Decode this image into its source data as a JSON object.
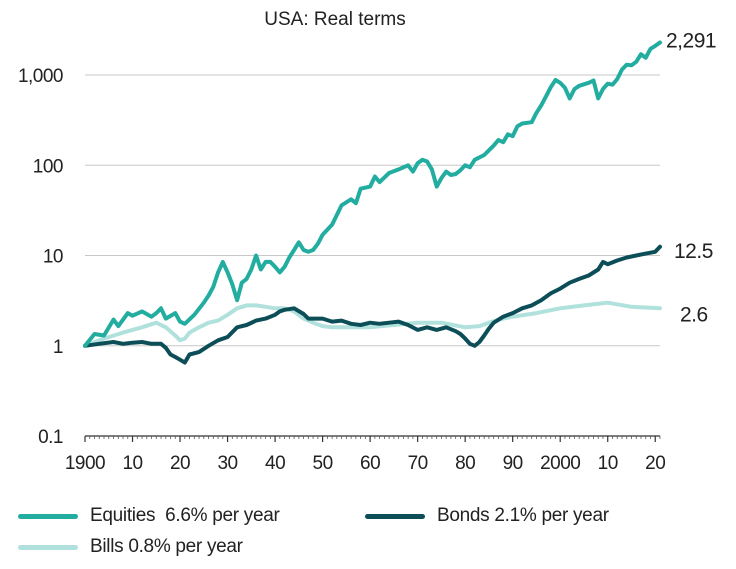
{
  "chart_data": {
    "type": "line",
    "title": "USA: Real terms",
    "y_scale": "log",
    "ylim": [
      0.1,
      3000
    ],
    "xlim": [
      1900,
      2021
    ],
    "x_tick_labels": [
      "1900",
      "10",
      "20",
      "30",
      "40",
      "50",
      "60",
      "70",
      "80",
      "90",
      "2000",
      "10",
      "20"
    ],
    "y_tick_labels": [
      "0.1",
      "1",
      "10",
      "100",
      "1,000"
    ],
    "y_tick_values": [
      0.1,
      1,
      10,
      100,
      1000
    ],
    "grid": true,
    "series": [
      {
        "name": "Equities",
        "legend": "Equities  6.6% per year",
        "color": "#22ada0",
        "end_label": "2,291",
        "x": [
          1900,
          1902,
          1904,
          1906,
          1907,
          1909,
          1910,
          1912,
          1914,
          1915,
          1916,
          1917,
          1919,
          1920,
          1921,
          1923,
          1925,
          1926,
          1927,
          1928,
          1929,
          1930,
          1931,
          1932,
          1933,
          1934,
          1935,
          1936,
          1937,
          1938,
          1939,
          1940,
          1941,
          1942,
          1943,
          1944,
          1945,
          1946,
          1947,
          1948,
          1949,
          1950,
          1952,
          1954,
          1956,
          1957,
          1958,
          1960,
          1961,
          1962,
          1964,
          1966,
          1967,
          1968,
          1969,
          1970,
          1971,
          1972,
          1973,
          1974,
          1975,
          1976,
          1977,
          1978,
          1979,
          1980,
          1981,
          1982,
          1984,
          1986,
          1987,
          1988,
          1989,
          1990,
          1991,
          1992,
          1994,
          1995,
          1996,
          1997,
          1998,
          1999,
          2000,
          2001,
          2002,
          2003,
          2004,
          2006,
          2007,
          2008,
          2009,
          2010,
          2011,
          2012,
          2013,
          2014,
          2015,
          2016,
          2017,
          2018,
          2019,
          2020,
          2021
        ],
        "values": [
          1.0,
          1.35,
          1.3,
          1.95,
          1.65,
          2.3,
          2.15,
          2.4,
          2.1,
          2.3,
          2.6,
          2.0,
          2.3,
          1.85,
          1.75,
          2.2,
          3.0,
          3.6,
          4.5,
          6.5,
          8.5,
          6.5,
          4.8,
          3.2,
          5.0,
          5.5,
          7.0,
          10.0,
          7.0,
          8.5,
          8.5,
          7.5,
          6.5,
          7.5,
          9.5,
          11.5,
          14.0,
          11.5,
          11.0,
          11.5,
          13.5,
          17.0,
          22.0,
          36.0,
          42.0,
          38.0,
          55.0,
          58.0,
          75.0,
          65.0,
          82.0,
          90.0,
          95.0,
          100.0,
          85.0,
          105.0,
          115.0,
          110.0,
          90.0,
          58.0,
          72.0,
          85.0,
          78.0,
          80.0,
          88.0,
          100.0,
          95.0,
          115.0,
          130.0,
          165.0,
          190.0,
          180.0,
          220.0,
          210.0,
          270.0,
          290.0,
          300.0,
          380.0,
          460.0,
          580.0,
          730.0,
          880.0,
          820.0,
          720.0,
          550.0,
          700.0,
          760.0,
          820.0,
          870.0,
          550.0,
          700.0,
          800.0,
          780.0,
          900.0,
          1150.0,
          1300.0,
          1280.0,
          1400.0,
          1700.0,
          1550.0,
          1950.0,
          2100.0,
          2291.0
        ]
      },
      {
        "name": "Bonds",
        "legend": "Bonds 2.1% per year",
        "color": "#0c4e57",
        "end_label": "12.5",
        "x": [
          1900,
          1903,
          1906,
          1908,
          1910,
          1912,
          1914,
          1916,
          1917,
          1918,
          1919,
          1920,
          1921,
          1922,
          1924,
          1926,
          1928,
          1930,
          1932,
          1934,
          1936,
          1938,
          1940,
          1941,
          1942,
          1944,
          1946,
          1947,
          1948,
          1950,
          1952,
          1954,
          1956,
          1958,
          1960,
          1962,
          1964,
          1966,
          1968,
          1970,
          1972,
          1974,
          1976,
          1978,
          1979,
          1980,
          1981,
          1982,
          1983,
          1984,
          1985,
          1986,
          1988,
          1990,
          1992,
          1994,
          1996,
          1998,
          2000,
          2002,
          2004,
          2006,
          2008,
          2009,
          2010,
          2012,
          2014,
          2016,
          2018,
          2020,
          2021
        ],
        "values": [
          1.0,
          1.05,
          1.1,
          1.05,
          1.08,
          1.1,
          1.05,
          1.05,
          0.95,
          0.8,
          0.75,
          0.7,
          0.65,
          0.8,
          0.85,
          1.0,
          1.15,
          1.25,
          1.6,
          1.7,
          1.9,
          2.0,
          2.2,
          2.4,
          2.5,
          2.6,
          2.25,
          2.0,
          2.0,
          2.0,
          1.85,
          1.9,
          1.75,
          1.7,
          1.8,
          1.75,
          1.8,
          1.85,
          1.7,
          1.5,
          1.6,
          1.5,
          1.6,
          1.45,
          1.35,
          1.2,
          1.05,
          1.0,
          1.1,
          1.3,
          1.55,
          1.8,
          2.1,
          2.3,
          2.6,
          2.8,
          3.2,
          3.8,
          4.3,
          5.0,
          5.5,
          6.0,
          7.0,
          8.5,
          8.0,
          8.8,
          9.5,
          10.0,
          10.5,
          11.0,
          12.5
        ]
      },
      {
        "name": "Bills",
        "legend": "Bills 0.8% per year",
        "color": "#b1e1dc",
        "end_label": "2.6",
        "x": [
          1900,
          1904,
          1908,
          1912,
          1915,
          1917,
          1919,
          1920,
          1921,
          1922,
          1924,
          1926,
          1928,
          1930,
          1932,
          1934,
          1936,
          1938,
          1940,
          1942,
          1944,
          1946,
          1948,
          1950,
          1952,
          1956,
          1960,
          1965,
          1970,
          1975,
          1980,
          1983,
          1985,
          1988,
          1990,
          1995,
          2000,
          2005,
          2010,
          2015,
          2021
        ],
        "values": [
          1.0,
          1.2,
          1.4,
          1.6,
          1.8,
          1.6,
          1.3,
          1.15,
          1.2,
          1.4,
          1.6,
          1.8,
          1.9,
          2.2,
          2.6,
          2.8,
          2.8,
          2.7,
          2.6,
          2.6,
          2.4,
          2.0,
          1.8,
          1.65,
          1.6,
          1.6,
          1.6,
          1.7,
          1.8,
          1.8,
          1.6,
          1.65,
          1.8,
          2.0,
          2.1,
          2.3,
          2.6,
          2.8,
          3.0,
          2.7,
          2.6
        ]
      }
    ]
  }
}
